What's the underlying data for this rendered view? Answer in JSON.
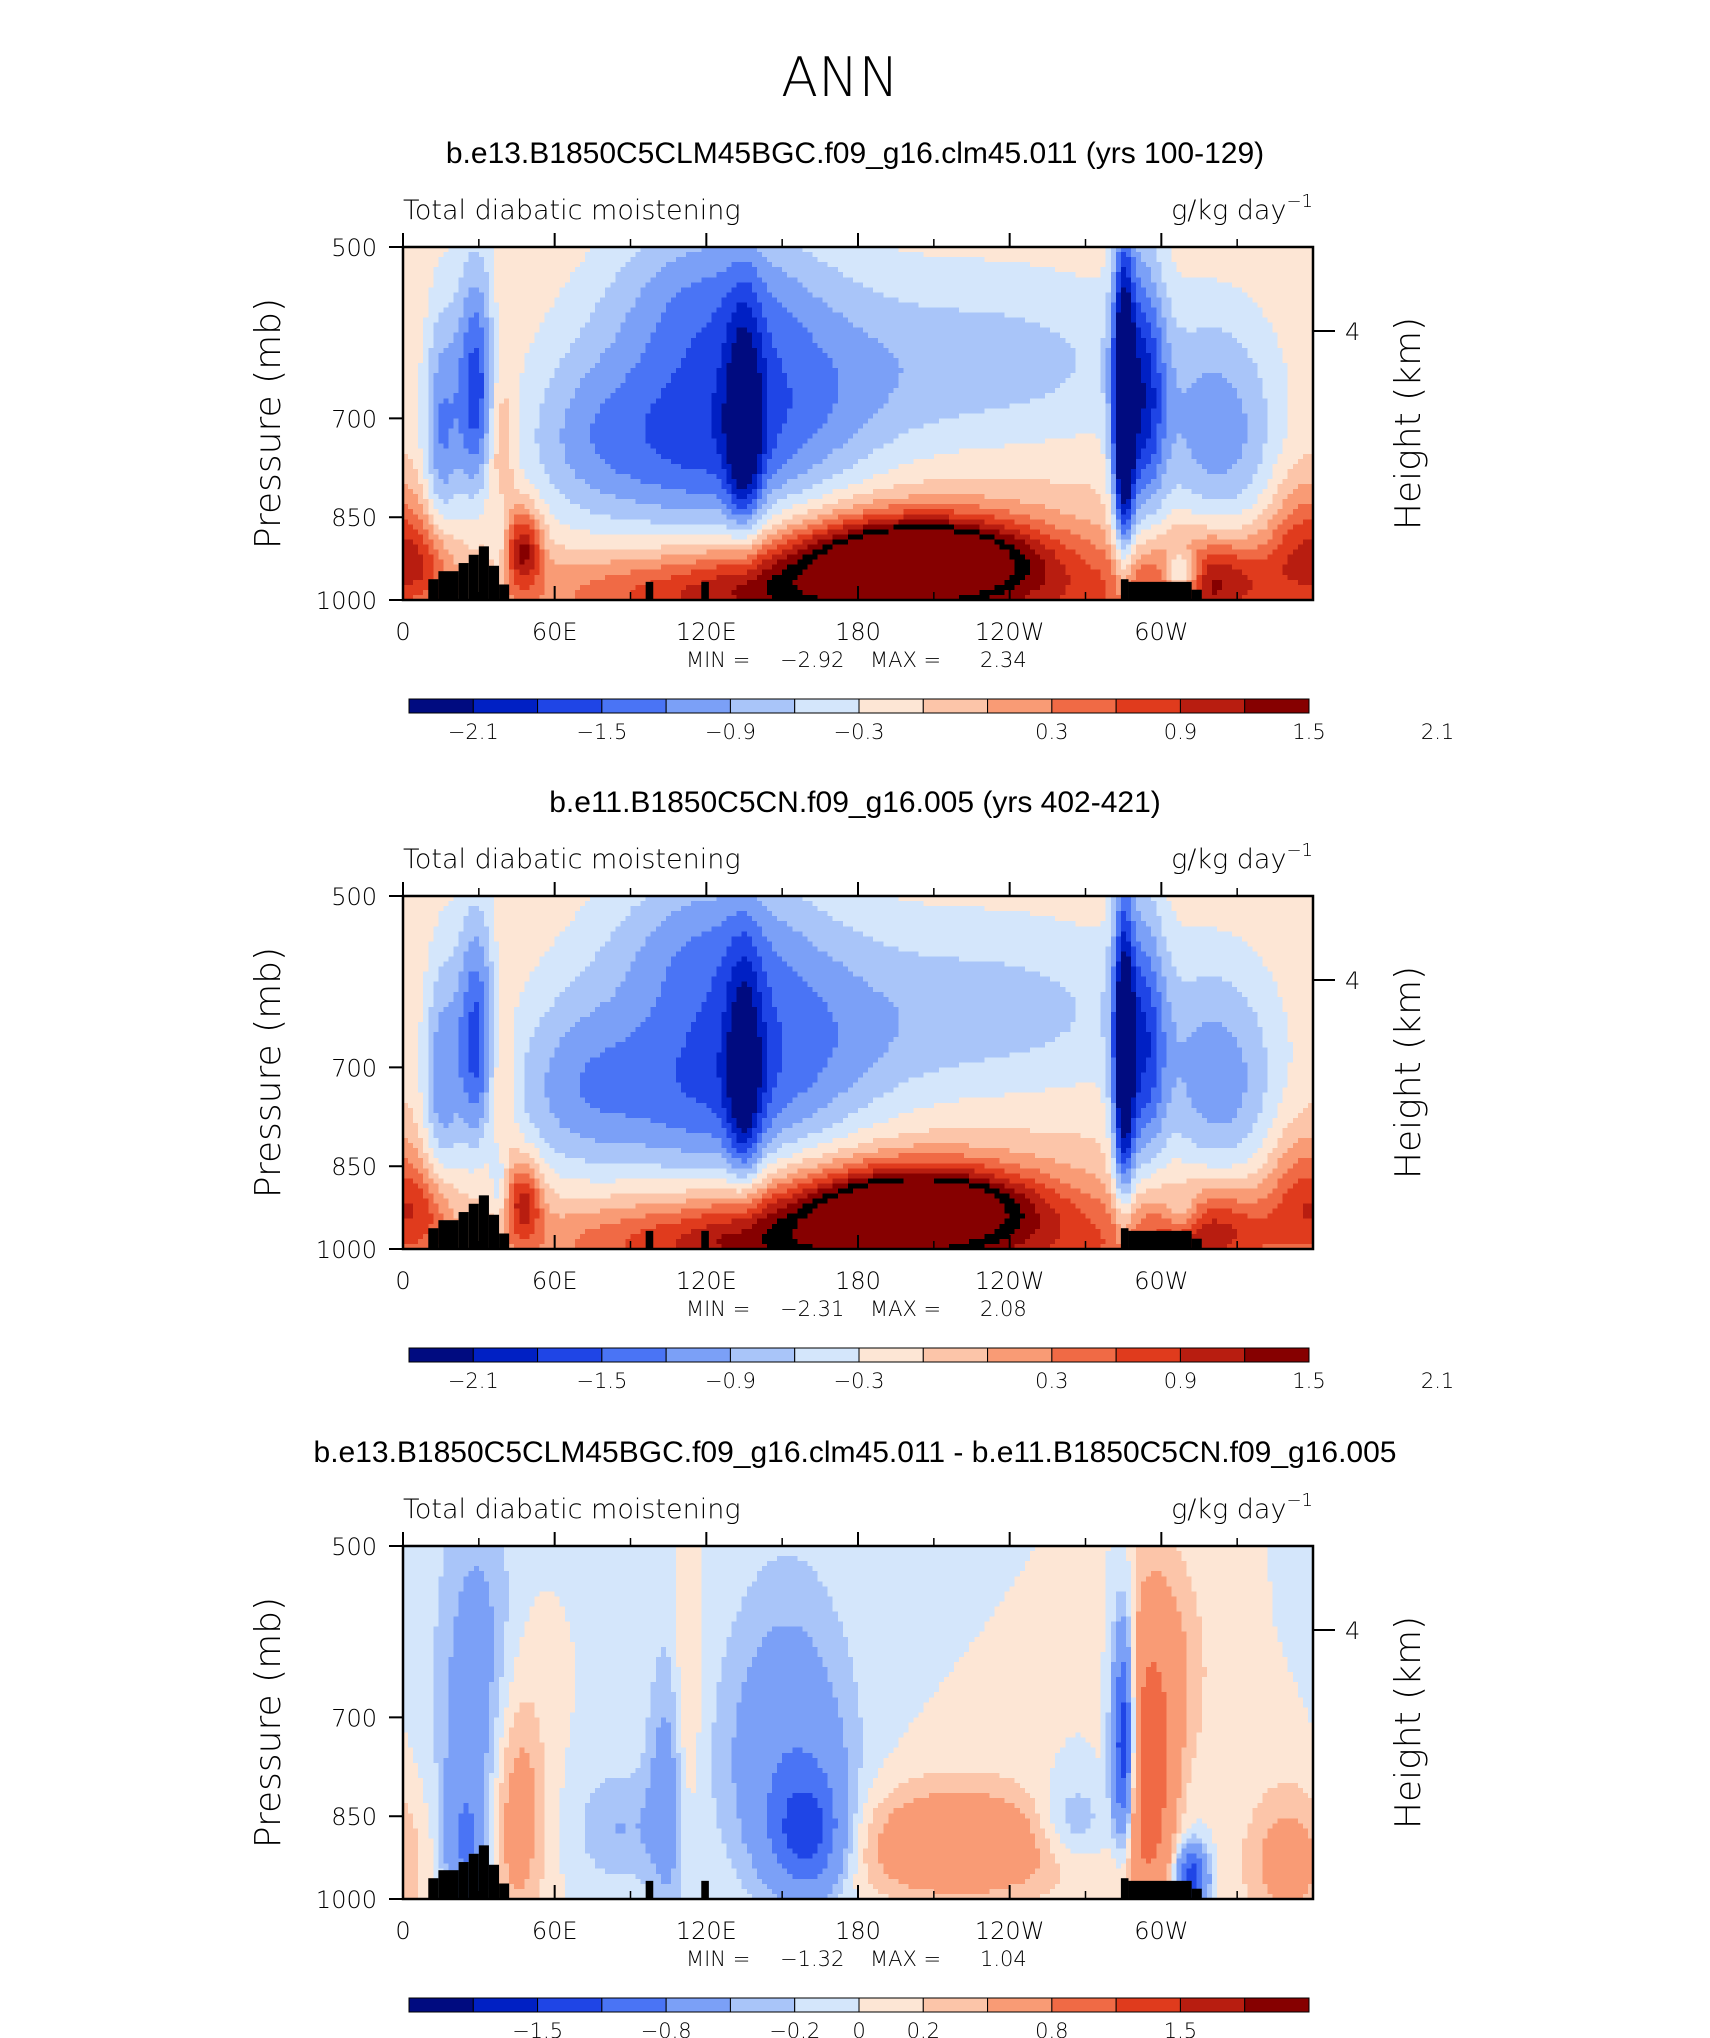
{
  "figure_title": "ANN",
  "colors": {
    "seq_main": [
      "#000b80",
      "#0020c4",
      "#1f45e6",
      "#4a74f5",
      "#7ba0f7",
      "#a9c5f9",
      "#d4e6fb",
      "#fde6d5",
      "#fcc5a9",
      "#f99b75",
      "#f06a45",
      "#e03b1d",
      "#b81d10",
      "#860000"
    ],
    "seq_diff": [
      "#000b80",
      "#0020c4",
      "#1f45e6",
      "#4a74f5",
      "#7ba0f7",
      "#a9c5f9",
      "#d4e6fb",
      "#fde6d5",
      "#fcc5a9",
      "#f99b75",
      "#f06a45",
      "#e03b1d",
      "#b81d10",
      "#860000"
    ],
    "topography": "#000000"
  },
  "chart_data": [
    {
      "type": "heatmap",
      "title": "b.e13.B1850C5CLM45BGC.f09_g16.clm45.011 (yrs 100-129)",
      "left_label": "Total diabatic moistening",
      "units_base": "g/kg day",
      "units_exp": "−1",
      "ylabel": "Pressure (mb)",
      "ylabel_right": "Height (km)",
      "xtick_labels": [
        "0",
        "60E",
        "120E",
        "180",
        "120W",
        "60W"
      ],
      "ytick_labels": [
        "500",
        "700",
        "850",
        "1000"
      ],
      "ytick_values": [
        500,
        700,
        850,
        1000
      ],
      "right_tick_labels": [
        "4"
      ],
      "xlim": [
        0,
        360
      ],
      "ylim": [
        1000,
        500
      ],
      "min_label": "MIN =",
      "min_value": "−2.92",
      "max_label": "MAX =",
      "max_value": "2.34",
      "colorbar_labels": [
        "−2.1",
        "−1.5",
        "−0.9",
        "−0.3",
        "0.3",
        "0.9",
        "1.5",
        "2.1"
      ],
      "colorbar_levels": [
        -2.4,
        -2.1,
        -1.8,
        -1.5,
        -1.2,
        -0.9,
        -0.6,
        -0.3,
        0,
        0.3,
        0.6,
        0.9,
        1.2,
        1.5,
        1.8,
        2.1,
        2.4
      ],
      "field_scale": 1.0,
      "field_features": [
        {
          "lon": 205,
          "p": 915,
          "amp": 2.3,
          "slon": 30,
          "sp": 45
        },
        {
          "lon": 190,
          "p": 940,
          "amp": 1.0,
          "slon": 55,
          "sp": 80
        },
        {
          "lon": 200,
          "p": 1000,
          "amp": 0.9,
          "slon": 90,
          "sp": 60
        },
        {
          "lon": 48,
          "p": 905,
          "amp": 1.5,
          "slon": 5,
          "sp": 50
        },
        {
          "lon": 38,
          "p": 780,
          "amp": 0.9,
          "slon": 4,
          "sp": 130
        },
        {
          "lon": 10,
          "p": 930,
          "amp": 0.8,
          "slon": 8,
          "sp": 60
        },
        {
          "lon": 320,
          "p": 960,
          "amp": 1.3,
          "slon": 18,
          "sp": 60
        },
        {
          "lon": 355,
          "p": 900,
          "amp": 1.0,
          "slon": 10,
          "sp": 80
        },
        {
          "lon": 130,
          "p": 980,
          "amp": 0.6,
          "slon": 50,
          "sp": 50
        },
        {
          "lon": 29,
          "p": 660,
          "amp": -1.6,
          "slon": 6,
          "sp": 110
        },
        {
          "lon": 15,
          "p": 720,
          "amp": -1.1,
          "slon": 5,
          "sp": 120
        },
        {
          "lon": 38,
          "p": 880,
          "amp": -1.0,
          "slon": 3,
          "sp": 70
        },
        {
          "lon": 285,
          "p": 700,
          "amp": -2.6,
          "slon": 3,
          "sp": 150
        },
        {
          "lon": 293,
          "p": 680,
          "amp": -1.5,
          "slon": 6,
          "sp": 130
        },
        {
          "lon": 308,
          "p": 950,
          "amp": -1.6,
          "slon": 5,
          "sp": 30
        },
        {
          "lon": 323,
          "p": 730,
          "amp": -1.0,
          "slon": 18,
          "sp": 110
        },
        {
          "lon": 120,
          "p": 730,
          "amp": -1.3,
          "slon": 25,
          "sp": 130
        },
        {
          "lon": 135,
          "p": 720,
          "amp": -1.3,
          "slon": 5,
          "sp": 110
        },
        {
          "lon": 75,
          "p": 730,
          "amp": -0.9,
          "slon": 22,
          "sp": 100
        },
        {
          "lon": 160,
          "p": 710,
          "amp": -0.6,
          "slon": 25,
          "sp": 120
        },
        {
          "lon": 190,
          "p": 640,
          "amp": -0.5,
          "slon": 60,
          "sp": 90
        },
        {
          "lon": 250,
          "p": 620,
          "amp": -0.4,
          "slon": 50,
          "sp": 80
        },
        {
          "lon": 120,
          "p": 540,
          "amp": -0.6,
          "slon": 30,
          "sp": 60
        }
      ]
    },
    {
      "type": "heatmap",
      "title": "b.e11.B1850C5CN.f09_g16.005 (yrs 402-421)",
      "left_label": "Total diabatic moistening",
      "units_base": "g/kg day",
      "units_exp": "−1",
      "ylabel": "Pressure (mb)",
      "ylabel_right": "Height (km)",
      "xtick_labels": [
        "0",
        "60E",
        "120E",
        "180",
        "120W",
        "60W"
      ],
      "ytick_labels": [
        "500",
        "700",
        "850",
        "1000"
      ],
      "ytick_values": [
        500,
        700,
        850,
        1000
      ],
      "right_tick_labels": [
        "4"
      ],
      "xlim": [
        0,
        360
      ],
      "ylim": [
        1000,
        500
      ],
      "min_label": "MIN =",
      "min_value": "−2.31",
      "max_label": "MAX =",
      "max_value": "2.08",
      "colorbar_labels": [
        "−2.1",
        "−1.5",
        "−0.9",
        "−0.3",
        "0.3",
        "0.9",
        "1.5",
        "2.1"
      ],
      "colorbar_levels": [
        -2.4,
        -2.1,
        -1.8,
        -1.5,
        -1.2,
        -0.9,
        -0.6,
        -0.3,
        0,
        0.3,
        0.6,
        0.9,
        1.2,
        1.5,
        1.8,
        2.1,
        2.4
      ],
      "field_scale": 1.0,
      "field_features": [
        {
          "lon": 205,
          "p": 915,
          "amp": 2.1,
          "slon": 30,
          "sp": 45
        },
        {
          "lon": 185,
          "p": 940,
          "amp": 1.0,
          "slon": 55,
          "sp": 80
        },
        {
          "lon": 200,
          "p": 1000,
          "amp": 0.9,
          "slon": 90,
          "sp": 60
        },
        {
          "lon": 48,
          "p": 910,
          "amp": 1.3,
          "slon": 5,
          "sp": 50
        },
        {
          "lon": 38,
          "p": 780,
          "amp": 0.8,
          "slon": 4,
          "sp": 130
        },
        {
          "lon": 10,
          "p": 930,
          "amp": 0.7,
          "slon": 8,
          "sp": 60
        },
        {
          "lon": 320,
          "p": 960,
          "amp": 1.1,
          "slon": 18,
          "sp": 60
        },
        {
          "lon": 355,
          "p": 900,
          "amp": 0.9,
          "slon": 10,
          "sp": 80
        },
        {
          "lon": 130,
          "p": 980,
          "amp": 0.6,
          "slon": 50,
          "sp": 50
        },
        {
          "lon": 29,
          "p": 660,
          "amp": -1.5,
          "slon": 6,
          "sp": 110
        },
        {
          "lon": 15,
          "p": 720,
          "amp": -1.0,
          "slon": 5,
          "sp": 120
        },
        {
          "lon": 38,
          "p": 880,
          "amp": -1.0,
          "slon": 3,
          "sp": 70
        },
        {
          "lon": 285,
          "p": 700,
          "amp": -2.2,
          "slon": 3,
          "sp": 150
        },
        {
          "lon": 293,
          "p": 680,
          "amp": -1.3,
          "slon": 6,
          "sp": 130
        },
        {
          "lon": 308,
          "p": 930,
          "amp": -0.7,
          "slon": 5,
          "sp": 30
        },
        {
          "lon": 323,
          "p": 730,
          "amp": -1.0,
          "slon": 18,
          "sp": 110
        },
        {
          "lon": 120,
          "p": 730,
          "amp": -1.2,
          "slon": 25,
          "sp": 130
        },
        {
          "lon": 135,
          "p": 720,
          "amp": -1.2,
          "slon": 5,
          "sp": 110
        },
        {
          "lon": 70,
          "p": 730,
          "amp": -1.0,
          "slon": 22,
          "sp": 100
        },
        {
          "lon": 160,
          "p": 710,
          "amp": -0.6,
          "slon": 25,
          "sp": 120
        },
        {
          "lon": 190,
          "p": 640,
          "amp": -0.5,
          "slon": 60,
          "sp": 90
        },
        {
          "lon": 250,
          "p": 620,
          "amp": -0.4,
          "slon": 50,
          "sp": 80
        },
        {
          "lon": 120,
          "p": 540,
          "amp": -0.6,
          "slon": 30,
          "sp": 60
        }
      ]
    },
    {
      "type": "heatmap",
      "title": "b.e13.B1850C5CLM45BGC.f09_g16.clm45.011 - b.e11.B1850C5CN.f09_g16.005",
      "left_label": "Total diabatic moistening",
      "units_base": "g/kg day",
      "units_exp": "−1",
      "ylabel": "Pressure (mb)",
      "ylabel_right": "Height (km)",
      "xtick_labels": [
        "0",
        "60E",
        "120E",
        "180",
        "120W",
        "60W"
      ],
      "ytick_labels": [
        "500",
        "700",
        "850",
        "1000"
      ],
      "ytick_values": [
        500,
        700,
        850,
        1000
      ],
      "right_tick_labels": [
        "4"
      ],
      "xlim": [
        0,
        360
      ],
      "ylim": [
        1000,
        500
      ],
      "min_label": "MIN =",
      "min_value": "−1.32",
      "max_label": "MAX =",
      "max_value": "1.04",
      "colorbar_labels": [
        "−1.5",
        "−0.8",
        "−0.2",
        "0",
        "0.2",
        "0.8",
        "1.5"
      ],
      "colorbar_levels": [
        -1.8,
        -1.5,
        -1.2,
        -0.8,
        -0.5,
        -0.2,
        -0.1,
        0,
        0.1,
        0.2,
        0.5,
        0.8,
        1.2,
        1.5,
        1.8
      ],
      "field_scale": 1.0,
      "field_features": [
        {
          "lon": 160,
          "p": 880,
          "amp": -0.8,
          "slon": 10,
          "sp": 70
        },
        {
          "lon": 152,
          "p": 760,
          "amp": -0.4,
          "slon": 18,
          "sp": 150
        },
        {
          "lon": 285,
          "p": 740,
          "amp": -1.2,
          "slon": 3,
          "sp": 100
        },
        {
          "lon": 312,
          "p": 960,
          "amp": -1.0,
          "slon": 4,
          "sp": 40
        },
        {
          "lon": 25,
          "p": 900,
          "amp": -0.5,
          "slon": 6,
          "sp": 100
        },
        {
          "lon": 30,
          "p": 650,
          "amp": -0.3,
          "slon": 12,
          "sp": 150
        },
        {
          "lon": 265,
          "p": 860,
          "amp": -0.25,
          "slon": 10,
          "sp": 50
        },
        {
          "lon": 105,
          "p": 820,
          "amp": -0.3,
          "slon": 6,
          "sp": 150
        },
        {
          "lon": 85,
          "p": 870,
          "amp": -0.2,
          "slon": 12,
          "sp": 70
        },
        {
          "lon": 220,
          "p": 900,
          "amp": 0.45,
          "slon": 30,
          "sp": 70
        },
        {
          "lon": 295,
          "p": 800,
          "amp": 0.7,
          "slon": 7,
          "sp": 150
        },
        {
          "lon": 45,
          "p": 830,
          "amp": 0.35,
          "slon": 8,
          "sp": 150
        },
        {
          "lon": 350,
          "p": 930,
          "amp": 0.3,
          "slon": 12,
          "sp": 90
        },
        {
          "lon": 305,
          "p": 640,
          "amp": 0.2,
          "slon": 10,
          "sp": 100
        },
        {
          "lon": 112,
          "p": 720,
          "amp": 0.2,
          "slon": 4,
          "sp": 150
        }
      ]
    }
  ]
}
